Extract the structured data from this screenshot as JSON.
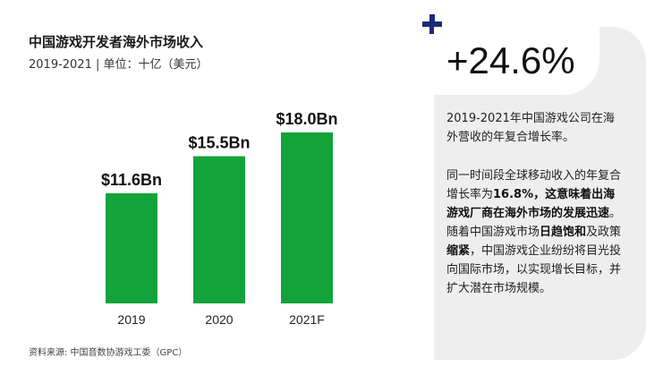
{
  "title": "中国游戏开发者海外市场收入",
  "subtitle": "2019-2021 | 单位：十亿（美元）",
  "chart_data": {
    "type": "bar",
    "categories": [
      "2019",
      "2020",
      "2021F"
    ],
    "values": [
      11.6,
      15.5,
      18.0
    ],
    "value_labels": [
      "$11.6Bn",
      "$15.5Bn",
      "$18.0Bn"
    ],
    "title": "中国游戏开发者海外市场收入",
    "ylim": [
      0,
      18.0
    ],
    "grid": false,
    "bar_color": "#12a33b"
  },
  "source": "资料来源: 中国音数协游戏工委（GPC）",
  "highlight": {
    "value": "+24.6%",
    "description": "2019-2021年中国游戏公司在海外营收的年复合增长率。",
    "detail_parts": [
      {
        "text": "同一时间段全球移动收入的年复合增长率为",
        "bold": false
      },
      {
        "text": "16.8%，这意味着出海游戏厂商在海外市场的发展迅速",
        "bold": true
      },
      {
        "text": "。随着中国游戏市场",
        "bold": false
      },
      {
        "text": "日趋饱和",
        "bold": true
      },
      {
        "text": "及政策",
        "bold": false
      },
      {
        "text": "缩紧",
        "bold": true
      },
      {
        "text": "，中国游戏企业纷纷将目光投向国际市场，以实现增长目标，并扩大潜在市场规模。",
        "bold": false
      }
    ]
  },
  "colors": {
    "accent": "#1b2a7a",
    "bar": "#12a33b",
    "card_bg": "#eeeeee"
  }
}
